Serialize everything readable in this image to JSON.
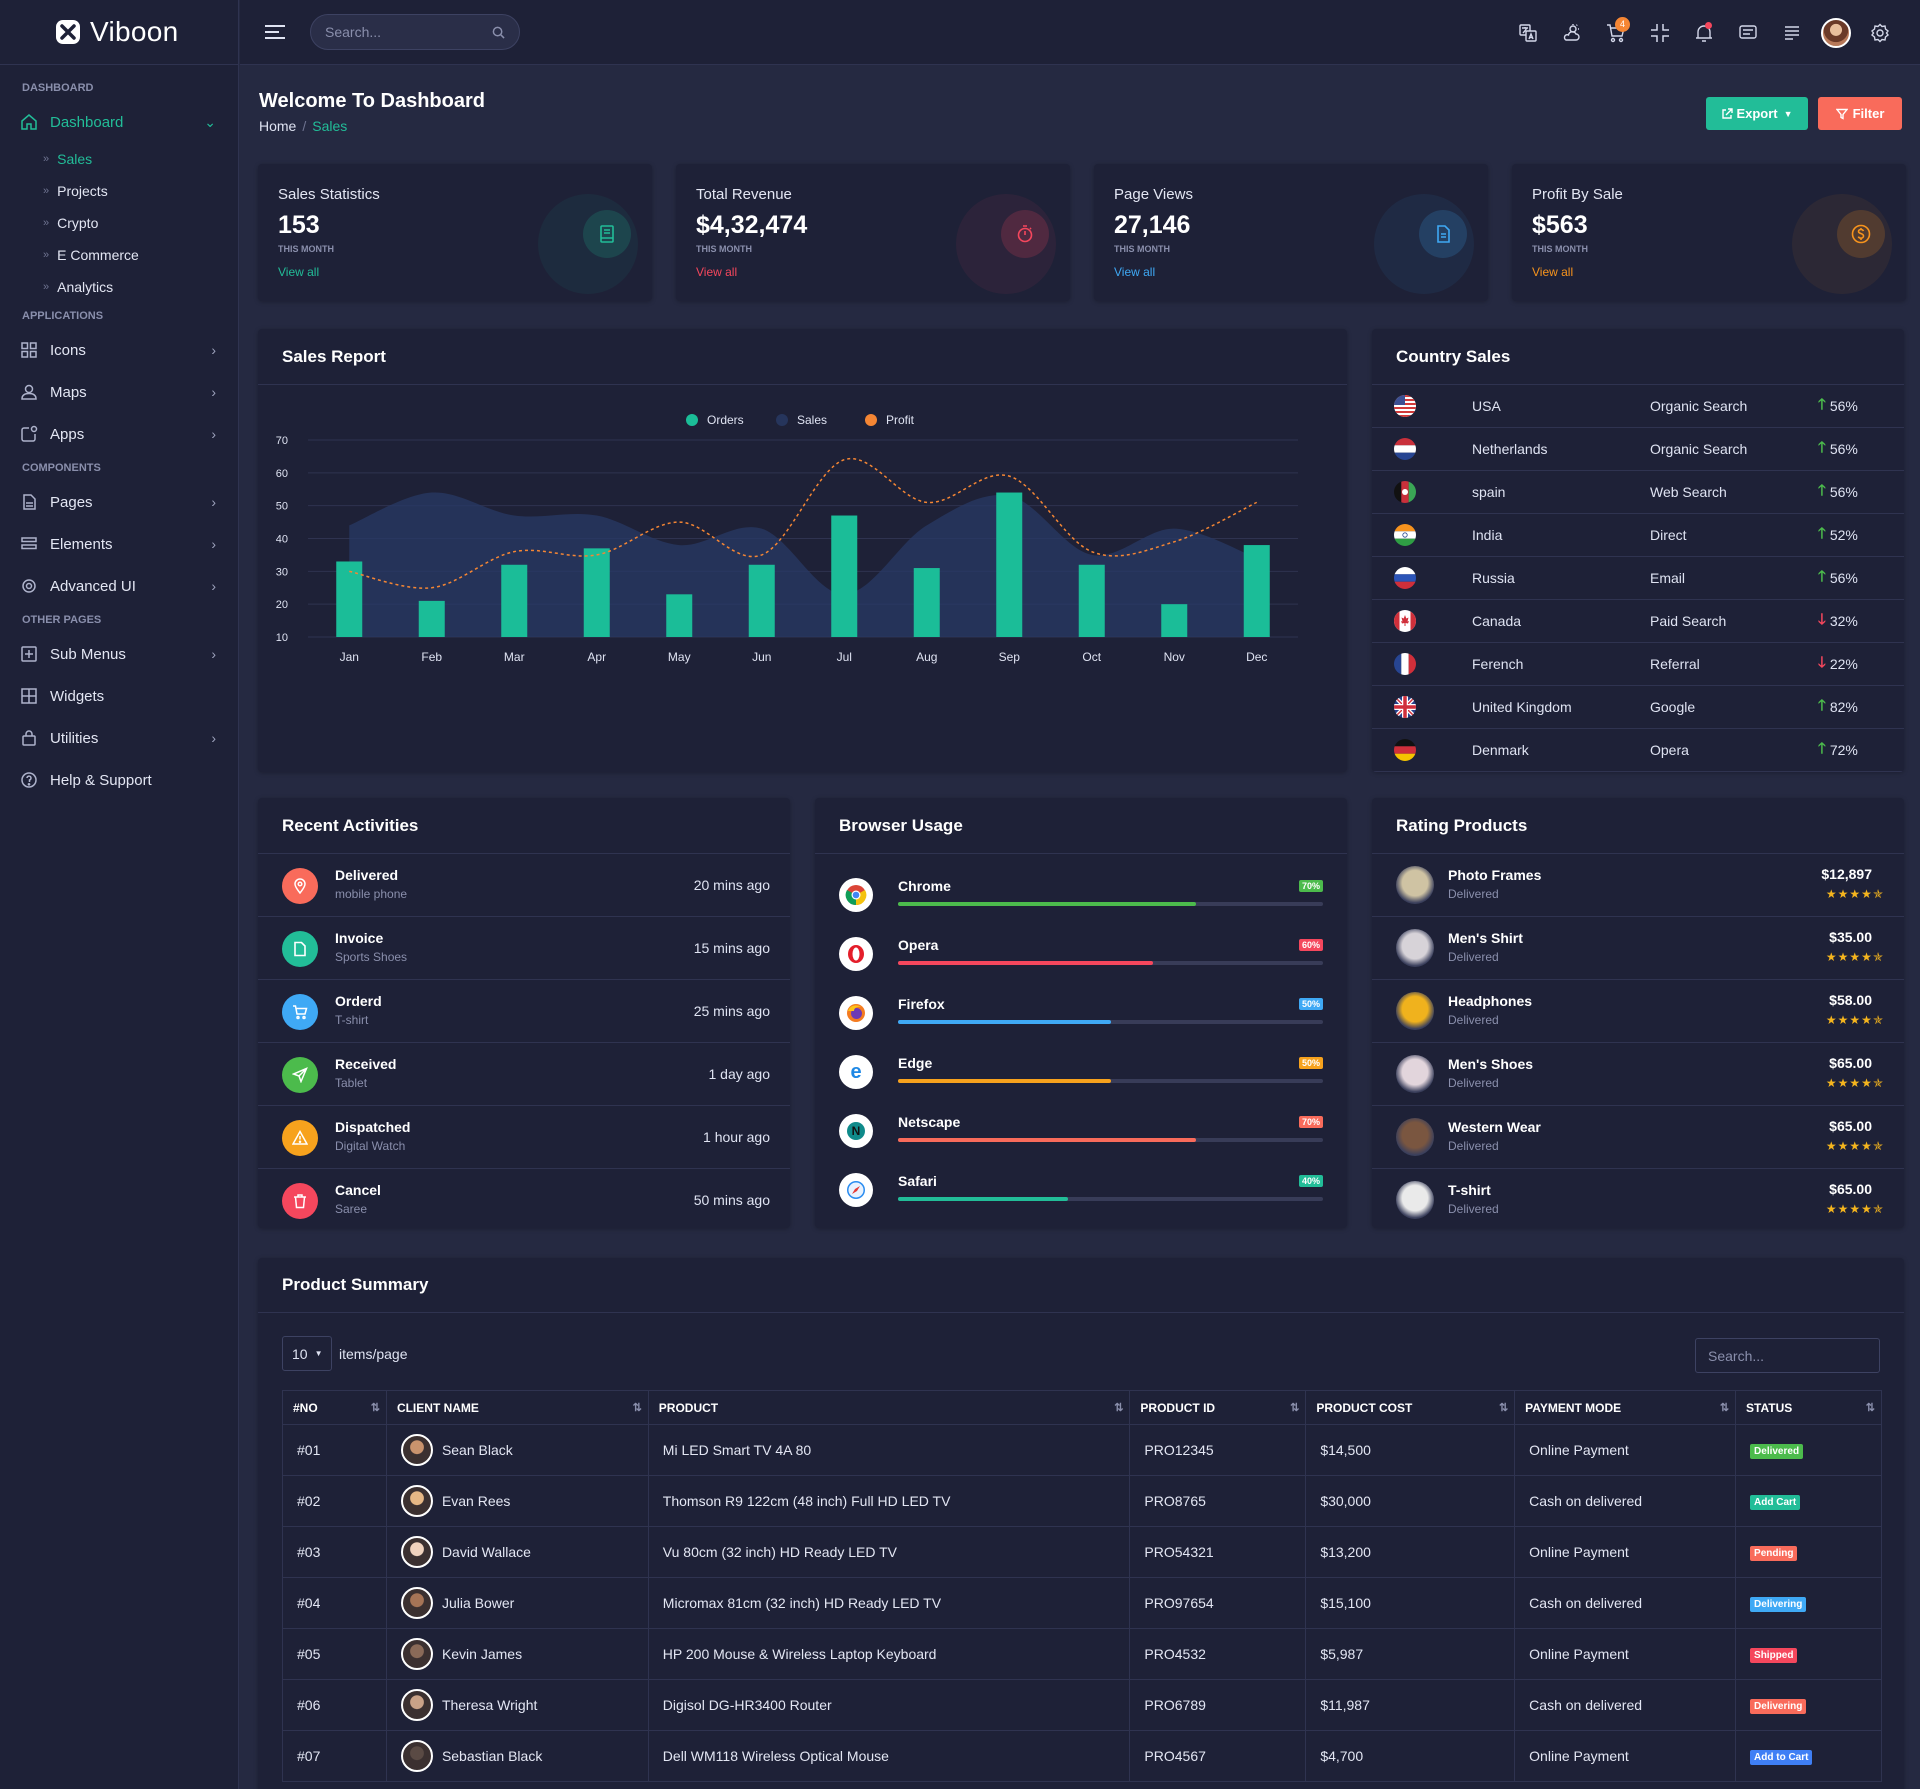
{
  "app": {
    "name": "Viboon"
  },
  "topbar": {
    "search_placeholder": "Search...",
    "cart_count": "4"
  },
  "sidebar": {
    "groups": {
      "dashboard": "DASHBOARD",
      "applications": "APPLICATIONS",
      "components": "COMPONENTS",
      "other": "OTHER PAGES"
    },
    "dashboard": "Dashboard",
    "sub_items": [
      "Sales",
      "Projects",
      "Crypto",
      "E Commerce",
      "Analytics"
    ],
    "items": [
      "Icons",
      "Maps",
      "Apps",
      "Pages",
      "Elements",
      "Advanced UI",
      "Sub Menus",
      "Widgets",
      "Utilities",
      "Help & Support"
    ]
  },
  "header": {
    "title": "Welcome To Dashboard",
    "crumb_home": "Home",
    "crumb_current": "Sales",
    "export_label": "Export",
    "filter_label": "Filter"
  },
  "stats": [
    {
      "label": "Sales Statistics",
      "value": "153",
      "sub": "THIS MONTH",
      "link": "View all",
      "color": "#22bd98"
    },
    {
      "label": "Total Revenue",
      "value": "$4,32,474",
      "sub": "THIS MONTH",
      "link": "View all",
      "color": "#f5475d"
    },
    {
      "label": "Page Views",
      "value": "27,146",
      "sub": "THIS MONTH",
      "link": "View all",
      "color": "#3fa9f5"
    },
    {
      "label": "Profit By Sale",
      "value": "$563",
      "sub": "THIS MONTH",
      "link": "View all",
      "color": "#f7941d"
    }
  ],
  "sales_report": {
    "title": "Sales Report"
  },
  "chart_data": {
    "type": "bar",
    "categories": [
      "Jan",
      "Feb",
      "Mar",
      "Apr",
      "May",
      "Jun",
      "Jul",
      "Aug",
      "Sep",
      "Oct",
      "Nov",
      "Dec"
    ],
    "series": [
      {
        "name": "Orders",
        "type": "bar",
        "color": "#1bbd98",
        "values": [
          33,
          21,
          32,
          37,
          23,
          32,
          47,
          31,
          54,
          32,
          20,
          38
        ]
      },
      {
        "name": "Sales",
        "type": "area",
        "color": "#283a66",
        "values": [
          44,
          54,
          47,
          47,
          38,
          43,
          23,
          44,
          53,
          35,
          43,
          34
        ]
      },
      {
        "name": "Profit",
        "type": "line",
        "color": "#f58634",
        "values": [
          30,
          25,
          36,
          35,
          45,
          35,
          64,
          51,
          59,
          36,
          39,
          51
        ]
      }
    ],
    "yticks": [
      10,
      20,
      30,
      40,
      50,
      60,
      70
    ],
    "ylim": [
      10,
      70
    ],
    "legend": "top-center",
    "grid": true
  },
  "country_sales": {
    "title": "Country Sales",
    "rows": [
      {
        "country": "USA",
        "source": "Organic Search",
        "pct": "56%",
        "dir": "up"
      },
      {
        "country": "Netherlands",
        "source": "Organic Search",
        "pct": "56%",
        "dir": "up"
      },
      {
        "country": "spain",
        "source": "Web Search",
        "pct": "56%",
        "dir": "up"
      },
      {
        "country": "India",
        "source": "Direct",
        "pct": "52%",
        "dir": "up"
      },
      {
        "country": "Russia",
        "source": "Email",
        "pct": "56%",
        "dir": "up"
      },
      {
        "country": "Canada",
        "source": "Paid Search",
        "pct": "32%",
        "dir": "down"
      },
      {
        "country": "Ferench",
        "source": "Referral",
        "pct": "22%",
        "dir": "down"
      },
      {
        "country": "United Kingdom",
        "source": "Google",
        "pct": "82%",
        "dir": "up"
      },
      {
        "country": "Denmark",
        "source": "Opera",
        "pct": "72%",
        "dir": "up"
      }
    ]
  },
  "recent_activities": {
    "title": "Recent Activities",
    "rows": [
      {
        "title": "Delivered",
        "sub": "mobile phone",
        "time": "20 mins ago",
        "color": "#f96b5b",
        "icon": "location-icon"
      },
      {
        "title": "Invoice",
        "sub": "Sports Shoes",
        "time": "15 mins ago",
        "color": "#22bd98",
        "icon": "document-icon"
      },
      {
        "title": "Orderd",
        "sub": "T-shirt",
        "time": "25 mins ago",
        "color": "#3fa9f5",
        "icon": "cart-icon"
      },
      {
        "title": "Received",
        "sub": "Tablet",
        "time": "1 day ago",
        "color": "#4cbb4c",
        "icon": "send-icon"
      },
      {
        "title": "Dispatched",
        "sub": "Digital Watch",
        "time": "1 hour ago",
        "color": "#f7a21d",
        "icon": "warning-icon"
      },
      {
        "title": "Cancel",
        "sub": "Saree",
        "time": "50 mins ago",
        "color": "#f5475d",
        "icon": "trash-icon"
      }
    ]
  },
  "browser_usage": {
    "title": "Browser Usage",
    "rows": [
      {
        "name": "Chrome",
        "pct": "70%",
        "value": 70,
        "color": "#4cbb4c",
        "icon": "chrome-icon"
      },
      {
        "name": "Opera",
        "pct": "60%",
        "value": 60,
        "color": "#f5475d",
        "icon": "opera-icon"
      },
      {
        "name": "Firefox",
        "pct": "50%",
        "value": 50,
        "color": "#3fa9f5",
        "icon": "firefox-icon"
      },
      {
        "name": "Edge",
        "pct": "50%",
        "value": 50,
        "color": "#f7a21d",
        "icon": "edge-icon"
      },
      {
        "name": "Netscape",
        "pct": "70%",
        "value": 70,
        "color": "#f96b5b",
        "icon": "netscape-icon"
      },
      {
        "name": "Safari",
        "pct": "40%",
        "value": 40,
        "color": "#22bd98",
        "icon": "safari-icon"
      }
    ]
  },
  "rating_products": {
    "title": "Rating Products",
    "rows": [
      {
        "name": "Photo Frames",
        "sub": "Delivered",
        "price": "$12,897",
        "stars": "★★★★✯",
        "color": "#cfc3a3"
      },
      {
        "name": "Men's Shirt",
        "sub": "Delivered",
        "price": "$35.00",
        "stars": "★★★★✯",
        "color": "#d7d3d8"
      },
      {
        "name": "Headphones",
        "sub": "Delivered",
        "price": "$58.00",
        "stars": "★★★★✯",
        "color": "#f0b21d"
      },
      {
        "name": "Men's Shoes",
        "sub": "Delivered",
        "price": "$65.00",
        "stars": "★★★★✯",
        "color": "#e2d5dc"
      },
      {
        "name": "Western Wear",
        "sub": "Delivered",
        "price": "$65.00",
        "stars": "★★★★✯",
        "color": "#7a5640"
      },
      {
        "name": "T-shirt",
        "sub": "Delivered",
        "price": "$65.00",
        "stars": "★★★★✯",
        "color": "#eaeaea"
      }
    ]
  },
  "product_summary": {
    "title": "Product Summary",
    "page_size": "10",
    "items_label": "items/page",
    "search_placeholder": "Search...",
    "columns": [
      "#NO",
      "CLIENT NAME",
      "PRODUCT",
      "PRODUCT ID",
      "PRODUCT COST",
      "PAYMENT MODE",
      "STATUS"
    ],
    "rows": [
      {
        "no": "#01",
        "client": "Sean Black",
        "product": "Mi LED Smart TV 4A 80",
        "pid": "PRO12345",
        "cost": "$14,500",
        "payment": "Online Payment",
        "status": "Delivered",
        "status_color": "#4cbb4c"
      },
      {
        "no": "#02",
        "client": "Evan Rees",
        "product": "Thomson R9 122cm (48 inch) Full HD LED TV",
        "pid": "PRO8765",
        "cost": "$30,000",
        "payment": "Cash on delivered",
        "status": "Add Cart",
        "status_color": "#22bd98"
      },
      {
        "no": "#03",
        "client": "David Wallace",
        "product": "Vu 80cm (32 inch) HD Ready LED TV",
        "pid": "PRO54321",
        "cost": "$13,200",
        "payment": "Online Payment",
        "status": "Pending",
        "status_color": "#f96b5b"
      },
      {
        "no": "#04",
        "client": "Julia Bower",
        "product": "Micromax 81cm (32 inch) HD Ready LED TV",
        "pid": "PRO97654",
        "cost": "$15,100",
        "payment": "Cash on delivered",
        "status": "Delivering",
        "status_color": "#3fa9f5"
      },
      {
        "no": "#05",
        "client": "Kevin James",
        "product": "HP 200 Mouse & Wireless Laptop Keyboard",
        "pid": "PRO4532",
        "cost": "$5,987",
        "payment": "Online Payment",
        "status": "Shipped",
        "status_color": "#f5475d"
      },
      {
        "no": "#06",
        "client": "Theresa Wright",
        "product": "Digisol DG-HR3400 Router",
        "pid": "PRO6789",
        "cost": "$11,987",
        "payment": "Cash on delivered",
        "status": "Delivering",
        "status_color": "#f96b5b"
      },
      {
        "no": "#07",
        "client": "Sebastian Black",
        "product": "Dell WM118 Wireless Optical Mouse",
        "pid": "PRO4567",
        "cost": "$4,700",
        "payment": "Online Payment",
        "status": "Add to Cart",
        "status_color": "#3f7ff5"
      }
    ]
  }
}
